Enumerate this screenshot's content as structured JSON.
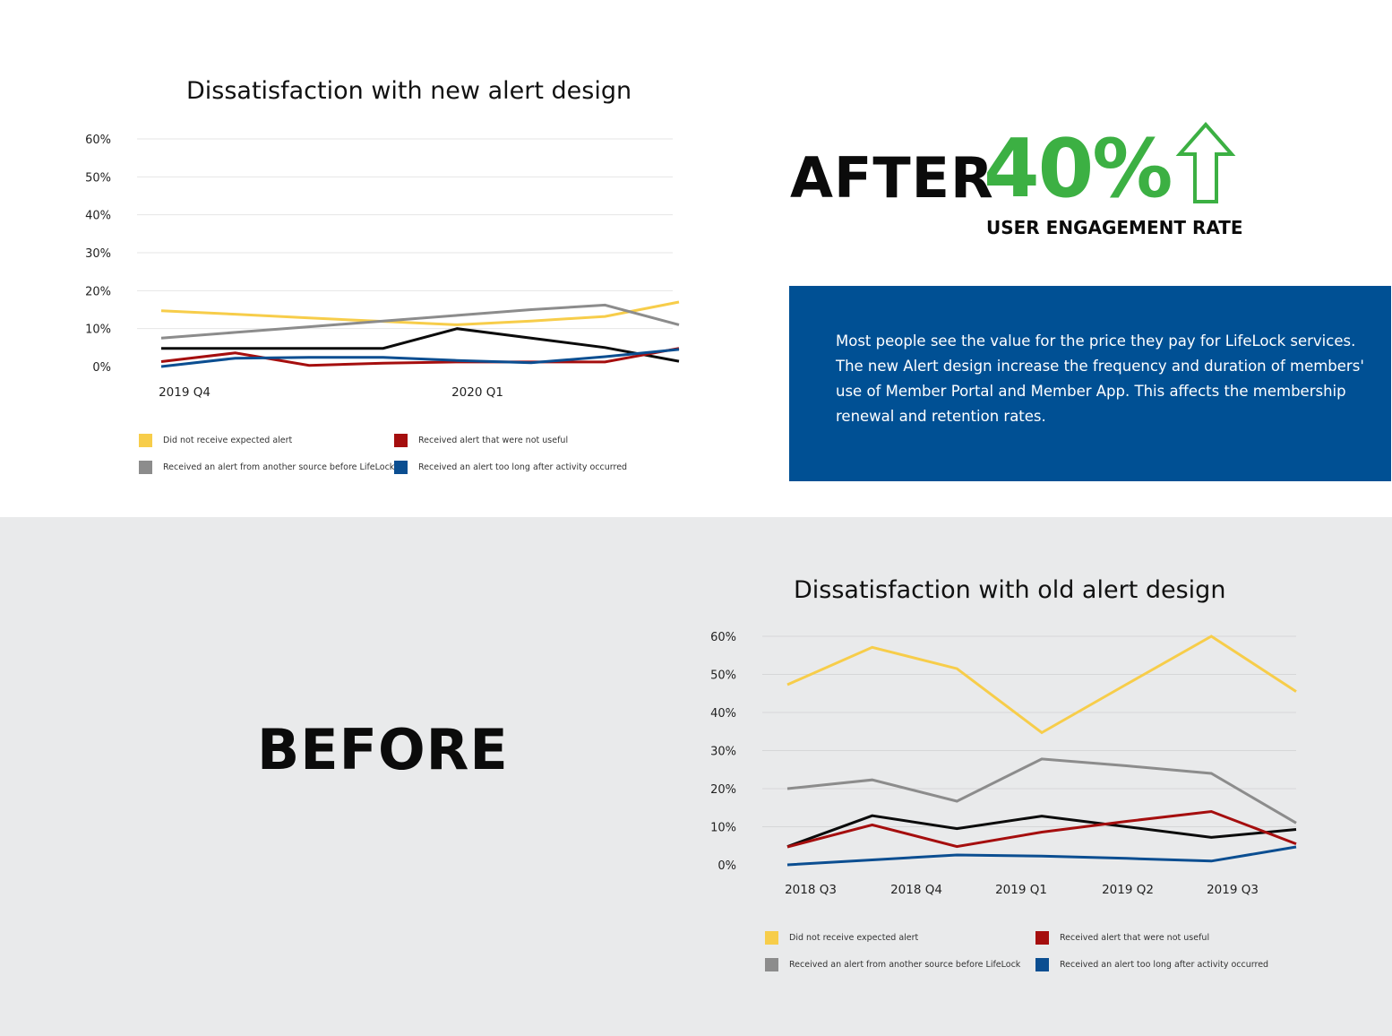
{
  "colors": {
    "yellow": "#f7cd4a",
    "gray": "#8c8c8c",
    "black": "#0b0b0b",
    "red": "#a50e0e",
    "blue": "#0b4e91",
    "accent_green": "#3cb043",
    "box_blue": "#005094"
  },
  "after_label": "AFTER",
  "stat": {
    "value": "40%",
    "caption": "USER ENGAGEMENT RATE",
    "icon": "arrow-up-icon"
  },
  "info_text": "Most people see the value for the price they pay for LifeLock services. The new Alert design increase the frequency and duration of members' use of Member Portal and Member App. This affects the membership renewal and retention rates.",
  "before_label": "BEFORE",
  "legend": [
    "Did not receive expected alert",
    "Received alert that were not useful",
    "Received an alert from another source before LifeLock",
    "Received an alert too long after activity occurred"
  ],
  "chart_data": [
    {
      "type": "line",
      "title": "Dissatisfaction with new alert design",
      "xlabel": "",
      "ylabel": "",
      "ylim": [
        0,
        60
      ],
      "y_ticks": [
        "0%",
        "10%",
        "20%",
        "30%",
        "40%",
        "50%",
        "60%"
      ],
      "tick_labels": [
        "2019 Q4",
        "2020 Q1"
      ],
      "grid": true,
      "legend_position": "bottom",
      "x": [
        0,
        1,
        2,
        3,
        4,
        5,
        6,
        7
      ],
      "series": [
        {
          "name": "Did not receive expected alert",
          "color": "yellow",
          "values": [
            14.7,
            13.8,
            12.8,
            11.9,
            11,
            12,
            13.2,
            17
          ]
        },
        {
          "name": "Received an alert from another source before LifeLock",
          "color": "gray",
          "values": [
            7.5,
            9,
            10.5,
            12,
            13.5,
            15,
            16.2,
            11
          ]
        },
        {
          "name": "",
          "color": "black",
          "values": [
            4.8,
            4.8,
            4.8,
            4.8,
            10,
            7.5,
            5,
            1.4
          ]
        },
        {
          "name": "Received alert that were not useful",
          "color": "red",
          "values": [
            1.3,
            3.6,
            0.3,
            0.9,
            1.2,
            1.2,
            1.2,
            4.8
          ]
        },
        {
          "name": "Received an alert too long after activity occurred",
          "color": "blue",
          "values": [
            0,
            2.2,
            2.4,
            2.4,
            1.6,
            1,
            2.6,
            4.5
          ]
        }
      ]
    },
    {
      "type": "line",
      "title": "Dissatisfaction with old alert design",
      "xlabel": "",
      "ylabel": "",
      "ylim": [
        0,
        60
      ],
      "y_ticks": [
        "0%",
        "10%",
        "20%",
        "30%",
        "40%",
        "50%",
        "60%"
      ],
      "tick_labels": [
        "2018 Q3",
        "2018 Q4",
        "2019 Q1",
        "2019 Q2",
        "2019 Q3"
      ],
      "grid": true,
      "legend_position": "bottom",
      "x": [
        0,
        1,
        2,
        3,
        4,
        5,
        6
      ],
      "series": [
        {
          "name": "Did not receive expected alert",
          "color": "yellow",
          "values": [
            47.3,
            57.1,
            51.5,
            34.7,
            47.4,
            60,
            45.5
          ]
        },
        {
          "name": "Received an alert from another source before LifeLock",
          "color": "gray",
          "values": [
            20,
            22.3,
            16.7,
            27.8,
            26,
            24,
            11
          ]
        },
        {
          "name": "",
          "color": "black",
          "values": [
            4.8,
            12.9,
            9.5,
            12.8,
            10,
            7.2,
            9.3
          ]
        },
        {
          "name": "Received alert that were not useful",
          "color": "red",
          "values": [
            4.7,
            10.5,
            4.8,
            8.6,
            11.4,
            14,
            5.5
          ]
        },
        {
          "name": "Received an alert too long after activity occurred",
          "color": "blue",
          "values": [
            0,
            1.3,
            2.6,
            2.3,
            1.7,
            1,
            4.7
          ]
        }
      ]
    }
  ]
}
